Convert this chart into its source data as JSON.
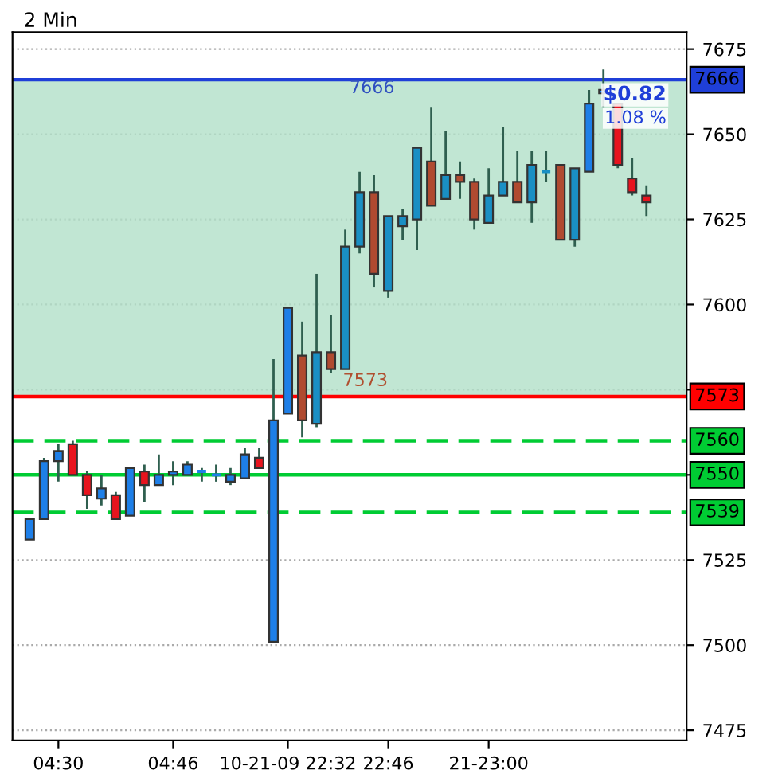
{
  "chart_data": {
    "type": "candlestick",
    "title": "2 Min",
    "categories": [
      null,
      null,
      "04:30",
      null,
      null,
      null,
      null,
      null,
      null,
      null,
      "04:46",
      null,
      null,
      null,
      null,
      null,
      null,
      null,
      "10-21-09 22:32",
      null,
      null,
      null,
      null,
      null,
      null,
      "22:46",
      null,
      null,
      null,
      null,
      null,
      null,
      "21-23:00",
      null,
      null,
      null,
      null,
      null,
      null,
      null,
      null,
      null,
      null,
      null
    ],
    "ohlc": [
      [
        7531,
        7537,
        7531,
        7537
      ],
      [
        7537,
        7555,
        7537,
        7554
      ],
      [
        7554,
        7559,
        7548,
        7557
      ],
      [
        7559,
        7560,
        7550,
        7550
      ],
      [
        7550,
        7551,
        7540,
        7544
      ],
      [
        7543,
        7550,
        7541,
        7546
      ],
      [
        7544,
        7545,
        7537,
        7537
      ],
      [
        7538,
        7552,
        7538,
        7552
      ],
      [
        7551,
        7553,
        7542,
        7547
      ],
      [
        7547,
        7556,
        7547,
        7550
      ],
      [
        7550,
        7554,
        7547,
        7551
      ],
      [
        7550,
        7554,
        7550,
        7553
      ],
      [
        7551,
        7552,
        7548,
        7551
      ],
      [
        7550,
        7553,
        7548,
        7550
      ],
      [
        7548,
        7552,
        7547,
        7550
      ],
      [
        7549,
        7558,
        7549,
        7556
      ],
      [
        7555,
        7558,
        7552,
        7552
      ],
      [
        7501,
        7584,
        7501,
        7566
      ],
      [
        7568,
        7599,
        7568,
        7599
      ],
      [
        7585,
        7595,
        7561,
        7566
      ],
      [
        7565,
        7609,
        7564,
        7586
      ],
      [
        7586,
        7597,
        7580,
        7581
      ],
      [
        7581,
        7622,
        7581,
        7617
      ],
      [
        7617,
        7639,
        7615,
        7633
      ],
      [
        7633,
        7638,
        7605,
        7609
      ],
      [
        7604,
        7626,
        7602,
        7626
      ],
      [
        7623,
        7628,
        7619,
        7626
      ],
      [
        7625,
        7646,
        7616,
        7646
      ],
      [
        7642,
        7658,
        7629,
        7629
      ],
      [
        7631,
        7651,
        7631,
        7638
      ],
      [
        7638,
        7642,
        7631,
        7636
      ],
      [
        7636,
        7637,
        7622,
        7625
      ],
      [
        7624,
        7640,
        7624,
        7632
      ],
      [
        7632,
        7652,
        7632,
        7636
      ],
      [
        7636,
        7645,
        7630,
        7630
      ],
      [
        7630,
        7645,
        7624,
        7641
      ],
      [
        7639,
        7645,
        7636,
        7639
      ],
      [
        7641,
        7641,
        7619,
        7619
      ],
      [
        7619,
        7640,
        7617,
        7640
      ],
      [
        7639,
        7663,
        7639,
        7659
      ],
      [
        7662,
        7669,
        7658,
        7663
      ],
      [
        7659,
        7659,
        7640,
        7641
      ],
      [
        7637,
        7643,
        7632,
        7633
      ],
      [
        7632,
        7635,
        7626,
        7630
      ]
    ],
    "colors": [
      "#1e7fe8",
      "#1e7fe8",
      "#1e7fe8",
      "#e8141e",
      "#e8141e",
      "#1e7fe8",
      "#e8141e",
      "#1e7fe8",
      "#e8141e",
      "#1e7fe8",
      "#1e7fe8",
      "#1e7fe8",
      "#1e7fe8",
      "#1e7fe8",
      "#1e7fe8",
      "#1e7fe8",
      "#e8141e",
      "#1e7fe8",
      "#1e7fe8",
      "#b04a30",
      "#1a8fc4",
      "#b04a30",
      "#1a8fc4",
      "#1a8fc4",
      "#b04a30",
      "#1a8fc4",
      "#1a8fc4",
      "#1a8fc4",
      "#b04a30",
      "#1a8fc4",
      "#b04a30",
      "#b04a30",
      "#1a8fc4",
      "#1a8fc4",
      "#b04a30",
      "#1a8fc4",
      "#1a8fc4",
      "#b04a30",
      "#1a8fc4",
      "#1e7fe8",
      "#1e7fe8",
      "#e8141e",
      "#e8141e",
      "#e8141e"
    ],
    "ylim": [
      7472,
      7680
    ],
    "yticks": [
      7475,
      7500,
      7525,
      {
        "value": 7550,
        "label": null
      },
      {
        "value": 7575,
        "label": null
      },
      7600,
      7625,
      7650,
      7675
    ],
    "grid": "y",
    "bands": [
      {
        "axis": "y",
        "from": 7573,
        "to": 7666,
        "color": "#b2e0c8"
      }
    ],
    "ref_lines": [
      {
        "axis": "y",
        "value": 7666,
        "label": "7666",
        "color": "#1f3fd8",
        "line_style": "solid"
      },
      {
        "axis": "y",
        "value": 7573,
        "label": "7573",
        "color": "#ff0000",
        "line_style": "solid"
      },
      {
        "axis": "y",
        "value": 7560,
        "label": "7560",
        "color": "#00cc33",
        "line_style": "dashed"
      },
      {
        "axis": "y",
        "value": 7550,
        "label": "7550",
        "color": "#00cc33",
        "line_style": "solid"
      },
      {
        "axis": "y",
        "value": 7539,
        "label": "7539",
        "color": "#00cc33",
        "line_style": "dashed"
      }
    ],
    "annotations": [
      "7666",
      "7573",
      "$0.82",
      "1.08 %"
    ]
  }
}
